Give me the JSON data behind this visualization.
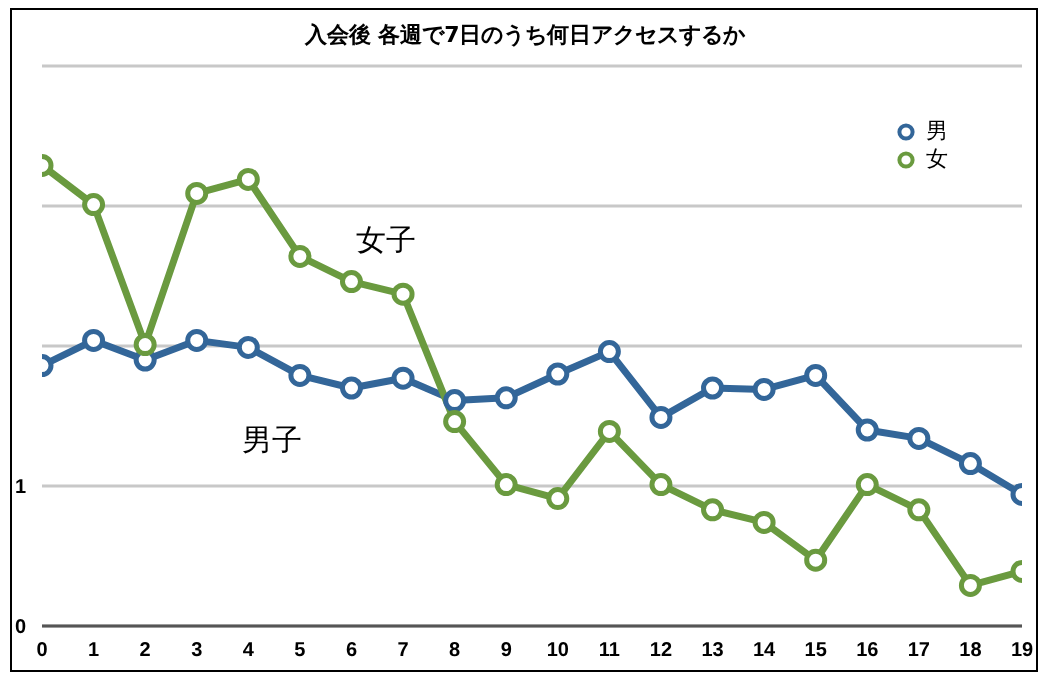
{
  "chart_data": {
    "type": "line",
    "title": "入会後 各週で7日のうち何日アクセスするか",
    "x": [
      0,
      1,
      2,
      3,
      4,
      5,
      6,
      7,
      8,
      9,
      10,
      11,
      12,
      13,
      14,
      15,
      16,
      17,
      18,
      19
    ],
    "series": [
      {
        "name": "男",
        "color": "#336699",
        "values": [
          1.86,
          2.04,
          1.9,
          2.04,
          1.99,
          1.79,
          1.7,
          1.77,
          1.61,
          1.63,
          1.8,
          1.96,
          1.49,
          1.7,
          1.69,
          1.79,
          1.4,
          1.34,
          1.16,
          0.94
        ]
      },
      {
        "name": "女",
        "color": "#6a9a3f",
        "values": [
          3.29,
          3.01,
          2.01,
          3.09,
          3.19,
          2.64,
          2.46,
          2.37,
          1.46,
          1.01,
          0.91,
          1.39,
          1.01,
          0.83,
          0.74,
          0.47,
          1.01,
          0.83,
          0.29,
          0.39
        ]
      }
    ],
    "xlim": [
      0,
      19
    ],
    "xticks": [
      0,
      1,
      2,
      3,
      4,
      5,
      6,
      7,
      8,
      9,
      10,
      11,
      12,
      13,
      14,
      15,
      16,
      17,
      18,
      19
    ],
    "ylim": [
      0,
      4
    ],
    "yticks": [
      0,
      1,
      {
        "value": 2,
        "label": null
      },
      {
        "value": 3,
        "label": null
      },
      {
        "value": 4,
        "label": null
      }
    ],
    "grid": "y",
    "legend": "top right",
    "marker": "circle",
    "line_style": "solid",
    "annotations": [
      "女子",
      "男子"
    ]
  }
}
